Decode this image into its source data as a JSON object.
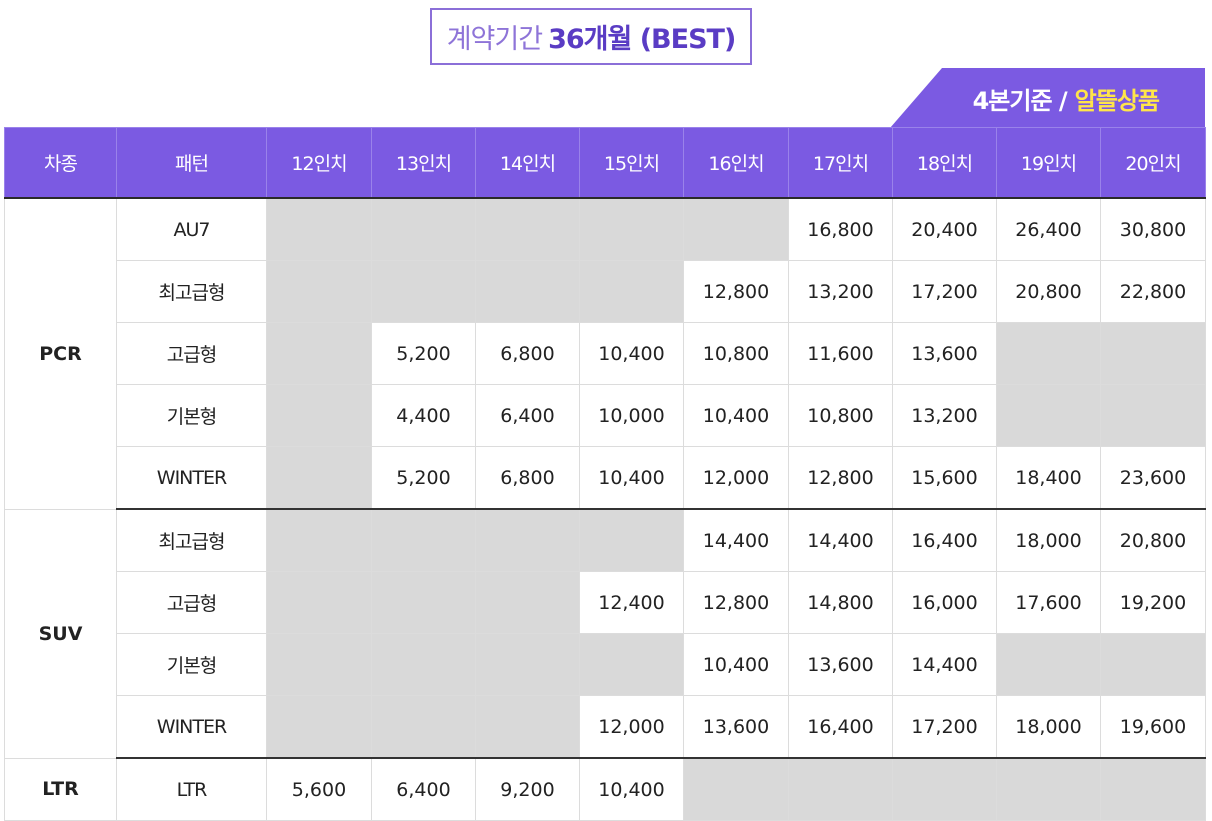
{
  "header": {
    "title_light": "계약기간",
    "title_bold": "36개월 (BEST)",
    "tag_basis": "4본기준 /",
    "tag_highlight": "알뜰상품"
  },
  "table": {
    "columns": [
      "차종",
      "패턴",
      "12인치",
      "13인치",
      "14인치",
      "15인치",
      "16인치",
      "17인치",
      "18인치",
      "19인치",
      "20인치"
    ],
    "groups": [
      {
        "category": "PCR",
        "rows": [
          {
            "pattern": "AU7",
            "prices": [
              null,
              null,
              null,
              null,
              null,
              "16,800",
              "20,400",
              "26,400",
              "30,800"
            ]
          },
          {
            "pattern": "최고급형",
            "prices": [
              null,
              null,
              null,
              null,
              "12,800",
              "13,200",
              "17,200",
              "20,800",
              "22,800"
            ]
          },
          {
            "pattern": "고급형",
            "prices": [
              null,
              "5,200",
              "6,800",
              "10,400",
              "10,800",
              "11,600",
              "13,600",
              null,
              null
            ]
          },
          {
            "pattern": "기본형",
            "prices": [
              null,
              "4,400",
              "6,400",
              "10,000",
              "10,400",
              "10,800",
              "13,200",
              null,
              null
            ]
          },
          {
            "pattern": "WINTER",
            "prices": [
              null,
              "5,200",
              "6,800",
              "10,400",
              "12,000",
              "12,800",
              "15,600",
              "18,400",
              "23,600"
            ]
          }
        ]
      },
      {
        "category": "SUV",
        "rows": [
          {
            "pattern": "최고급형",
            "prices": [
              null,
              null,
              null,
              null,
              "14,400",
              "14,400",
              "16,400",
              "18,000",
              "20,800"
            ]
          },
          {
            "pattern": "고급형",
            "prices": [
              null,
              null,
              null,
              "12,400",
              "12,800",
              "14,800",
              "16,000",
              "17,600",
              "19,200"
            ]
          },
          {
            "pattern": "기본형",
            "prices": [
              null,
              null,
              null,
              null,
              "10,400",
              "13,600",
              "14,400",
              null,
              null
            ]
          },
          {
            "pattern": "WINTER",
            "prices": [
              null,
              null,
              null,
              "12,000",
              "13,600",
              "16,400",
              "17,200",
              "18,000",
              "19,600"
            ]
          }
        ]
      },
      {
        "category": "LTR",
        "rows": [
          {
            "pattern": "LTR",
            "prices": [
              "5,600",
              "6,400",
              "9,200",
              "10,400",
              null,
              null,
              null,
              null,
              null
            ]
          }
        ]
      }
    ]
  },
  "colors": {
    "accent": "#7b5ae2",
    "highlight": "#ffe54a",
    "empty_cell": "#d9d9d9"
  }
}
